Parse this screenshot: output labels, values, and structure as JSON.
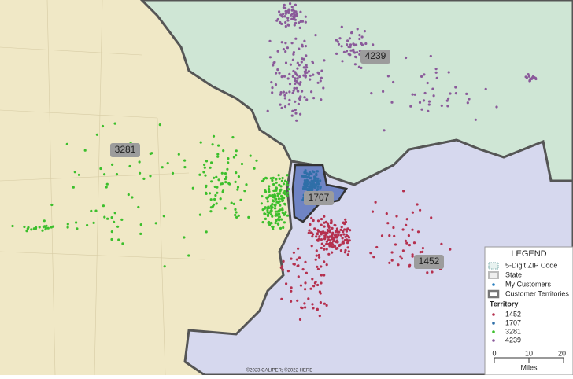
{
  "map": {
    "territory_labels": [
      "3281",
      "4239",
      "1707",
      "1452"
    ],
    "copyright": "©2023 CALIPER; ©2022 HERE",
    "legend": {
      "title": "LEGEND",
      "layers": [
        "5-Digit ZIP Code",
        "State",
        "My Customers",
        "Customer Territories"
      ],
      "territory_title": "Territory",
      "territories": [
        {
          "label": "1452",
          "color": "#b5304e"
        },
        {
          "label": "1707",
          "color": "#2f6fa8"
        },
        {
          "label": "3281",
          "color": "#3cbf2c"
        },
        {
          "label": "4239",
          "color": "#8a5a9a"
        }
      ],
      "scale_ticks": [
        "0",
        "10",
        "20"
      ],
      "scale_unit": "Miles"
    }
  }
}
